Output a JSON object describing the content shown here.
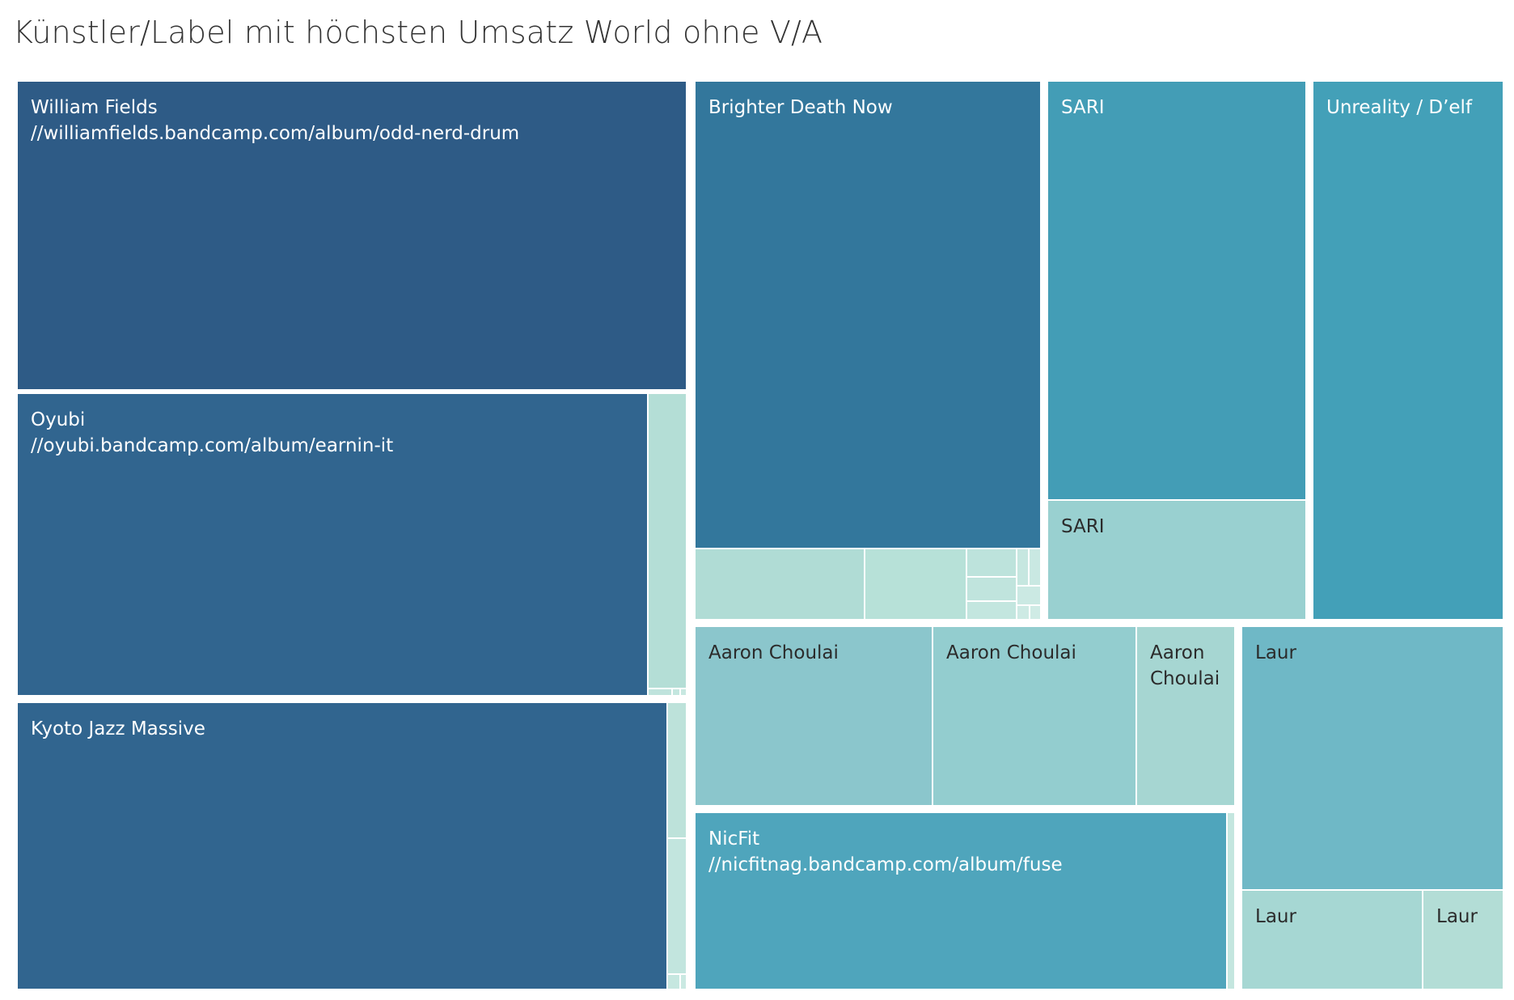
{
  "title": "Künstler/Label mit höchsten Umsatz World ohne V/A",
  "chart_data": {
    "type": "treemap",
    "title": "Künstler/Label mit höchsten Umsatz World ohne V/A",
    "groups": [
      {
        "name": "William Fields",
        "tiles": [
          {
            "name": "William Fields",
            "detail": "//williamfields.bandcamp.com/album/odd-nerd-drum",
            "color": "#2e5b86"
          }
        ]
      },
      {
        "name": "Oyubi",
        "tiles": [
          {
            "name": "Oyubi",
            "detail": "//oyubi.bandcamp.com/album/earnin-it",
            "color": "#31658f"
          },
          {
            "name": "",
            "detail": "",
            "color": "#b4ded6"
          },
          {
            "name": "",
            "detail": "",
            "color": "#bfe3dc"
          },
          {
            "name": "",
            "detail": "",
            "color": "#c4e6df"
          },
          {
            "name": "",
            "detail": "",
            "color": "#c8e8e1"
          }
        ]
      },
      {
        "name": "Kyoto Jazz Massive",
        "tiles": [
          {
            "name": "Kyoto Jazz Massive",
            "detail": "",
            "color": "#31658f"
          },
          {
            "name": "",
            "detail": "",
            "color": "#bde2da"
          },
          {
            "name": "",
            "detail": "",
            "color": "#c2e5de"
          },
          {
            "name": "",
            "detail": "",
            "color": "#c6e7e0"
          },
          {
            "name": "",
            "detail": "",
            "color": "#cae9e2"
          }
        ]
      },
      {
        "name": "Brighter Death Now",
        "tiles": [
          {
            "name": "Brighter Death Now",
            "detail": "",
            "color": "#33779c"
          },
          {
            "name": "",
            "detail": "",
            "color": "#b0dcd5"
          },
          {
            "name": "",
            "detail": "",
            "color": "#b7e1d8"
          },
          {
            "name": "",
            "detail": "",
            "color": "#bde3dc"
          },
          {
            "name": "",
            "detail": "",
            "color": "#c0e4dd"
          },
          {
            "name": "",
            "detail": "",
            "color": "#c3e6df"
          },
          {
            "name": "",
            "detail": "",
            "color": "#c6e7e0"
          },
          {
            "name": "",
            "detail": "",
            "color": "#c9e8e2"
          },
          {
            "name": "",
            "detail": "",
            "color": "#cbe9e3"
          },
          {
            "name": "",
            "detail": "",
            "color": "#cdeae4"
          },
          {
            "name": "",
            "detail": "",
            "color": "#cfebe5"
          }
        ]
      },
      {
        "name": "SARI",
        "tiles": [
          {
            "name": "SARI",
            "detail": "",
            "color": "#439db6"
          },
          {
            "name": "SARI",
            "detail": "",
            "color": "#99d0d0"
          }
        ]
      },
      {
        "name": "Unreality / D’elf",
        "tiles": [
          {
            "name": "Unreality / D’elf",
            "detail": "",
            "color": "#43a0b8"
          }
        ]
      },
      {
        "name": "Aaron Choulai",
        "tiles": [
          {
            "name": "Aaron Choulai",
            "detail": "",
            "color": "#8bc6cc"
          },
          {
            "name": "Aaron Choulai",
            "detail": "",
            "color": "#93cdcf"
          },
          {
            "name": "Aaron Choulai",
            "detail": "",
            "color": "#a6d6d2"
          }
        ]
      },
      {
        "name": "NicFit",
        "tiles": [
          {
            "name": "NicFit",
            "detail": "//nicfitnag.bandcamp.com/album/fuse",
            "color": "#4fa5bc"
          },
          {
            "name": "",
            "detail": "",
            "color": "#c4e6df"
          }
        ]
      },
      {
        "name": "Laur",
        "tiles": [
          {
            "name": "Laur",
            "detail": "",
            "color": "#6fb8c6"
          },
          {
            "name": "Laur",
            "detail": "",
            "color": "#a6d7d3"
          },
          {
            "name": "Laur",
            "detail": "",
            "color": "#b3ddd6"
          }
        ]
      }
    ]
  }
}
